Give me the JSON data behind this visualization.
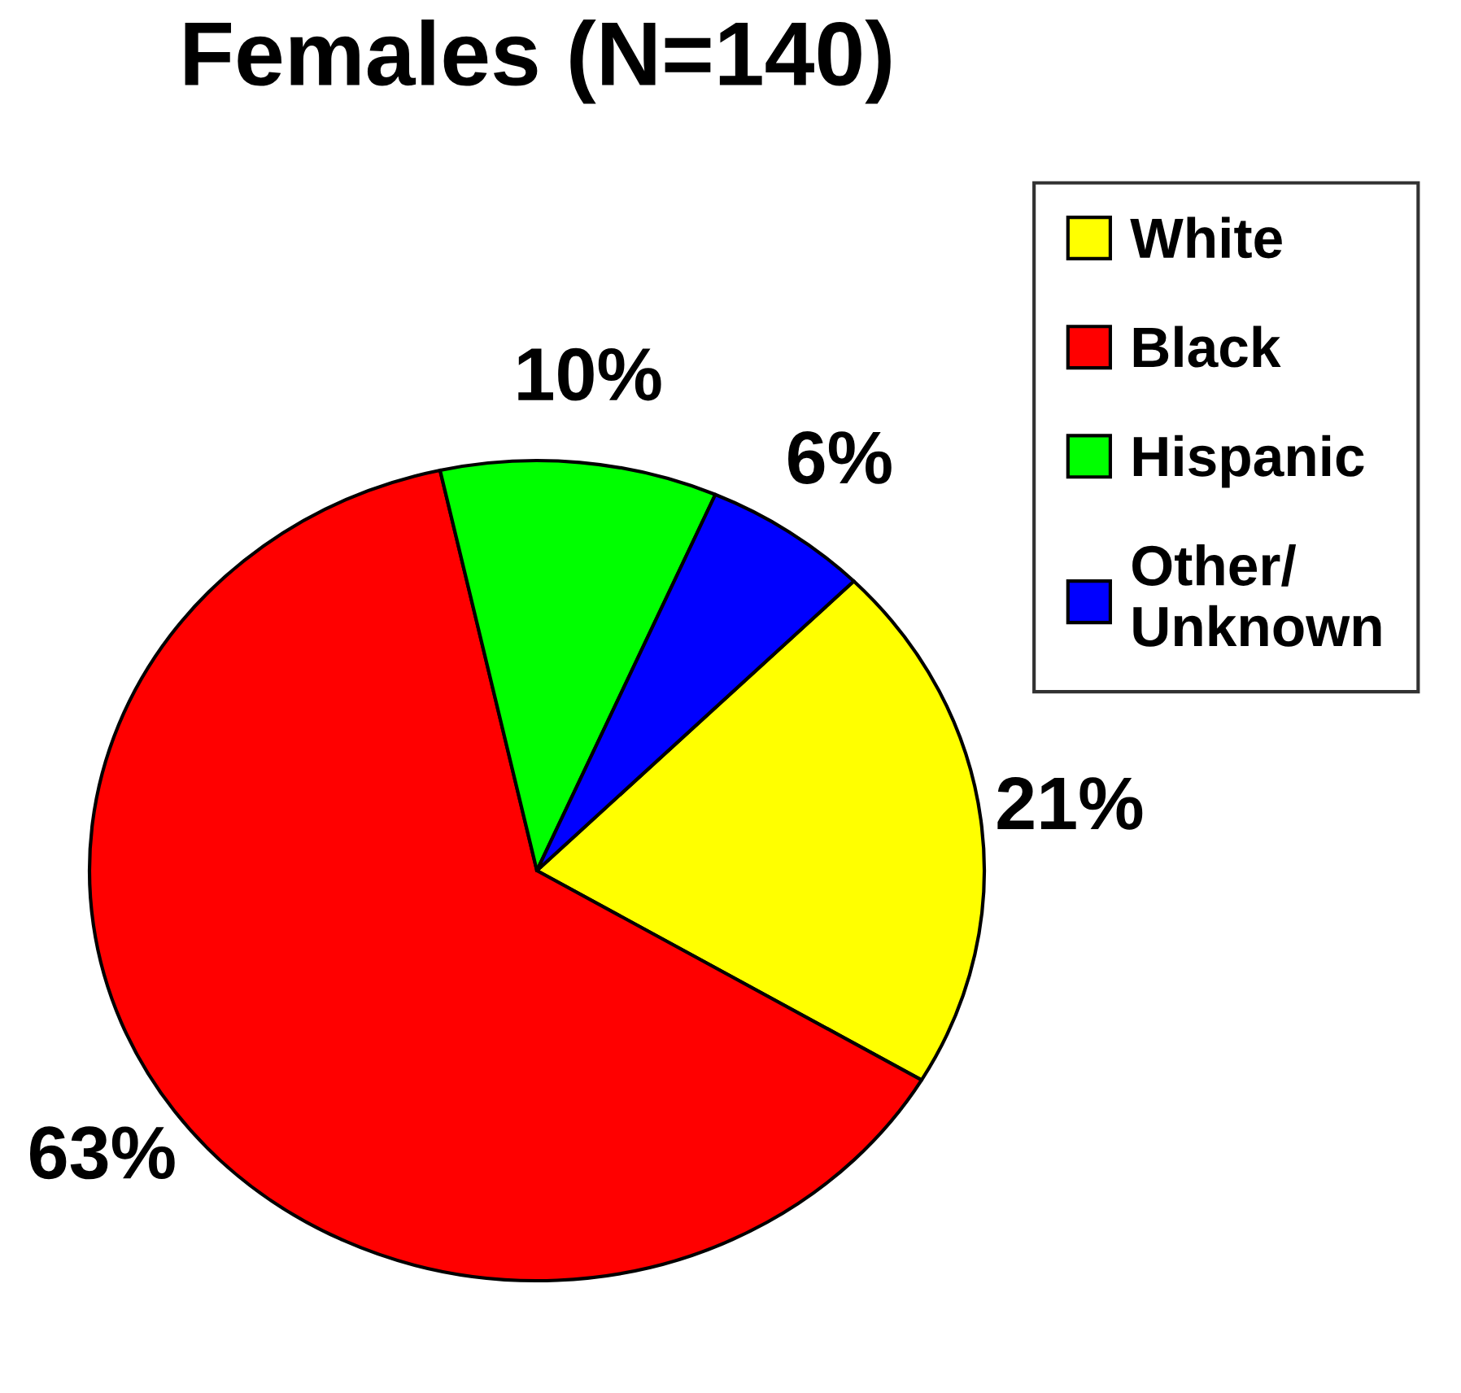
{
  "chart_data": {
    "type": "pie",
    "title": "Females (N=140)",
    "categories": [
      "White",
      "Black",
      "Hispanic",
      "Other/\nUnknown"
    ],
    "values": [
      21,
      63,
      10,
      6
    ],
    "colors": [
      "#ffff00",
      "#ff0000",
      "#00ff00",
      "#0000ff"
    ],
    "value_labels": [
      "21%",
      "63%",
      "10%",
      "6%"
    ],
    "legend": "top right"
  }
}
